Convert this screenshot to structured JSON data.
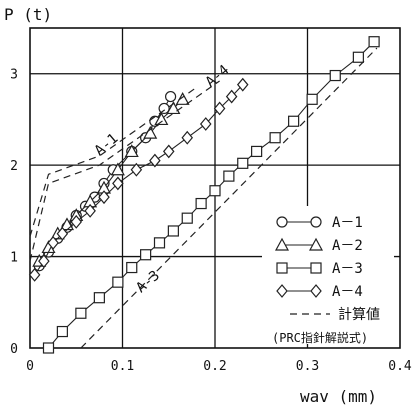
{
  "chart_data": {
    "type": "line",
    "ylabel": "P (t)",
    "xlabel": "wav (mm)",
    "xlim": [
      0,
      0.4
    ],
    "ylim": [
      0,
      3.5
    ],
    "x_ticks": [
      "0",
      "0.1",
      "0.2",
      "0.3",
      "0.4"
    ],
    "y_ticks": [
      "0",
      "1",
      "2",
      "3"
    ],
    "grid": true,
    "legend_position": "bottom-right",
    "series": [
      {
        "name": "A－1",
        "marker": "circle",
        "line": "solid",
        "points": [
          [
            0.01,
            0.9
          ],
          [
            0.02,
            1.05
          ],
          [
            0.03,
            1.2
          ],
          [
            0.04,
            1.32
          ],
          [
            0.05,
            1.45
          ],
          [
            0.06,
            1.55
          ],
          [
            0.07,
            1.65
          ],
          [
            0.08,
            1.8
          ],
          [
            0.09,
            1.95
          ],
          [
            0.11,
            2.15
          ],
          [
            0.125,
            2.3
          ],
          [
            0.135,
            2.48
          ],
          [
            0.145,
            2.62
          ],
          [
            0.152,
            2.75
          ]
        ]
      },
      {
        "name": "A－2",
        "marker": "triangle",
        "line": "solid",
        "points": [
          [
            0.01,
            0.95
          ],
          [
            0.02,
            1.1
          ],
          [
            0.03,
            1.25
          ],
          [
            0.04,
            1.35
          ],
          [
            0.05,
            1.45
          ],
          [
            0.065,
            1.6
          ],
          [
            0.08,
            1.75
          ],
          [
            0.095,
            1.95
          ],
          [
            0.11,
            2.15
          ],
          [
            0.13,
            2.35
          ],
          [
            0.142,
            2.5
          ],
          [
            0.155,
            2.62
          ],
          [
            0.165,
            2.72
          ]
        ]
      },
      {
        "name": "A－3",
        "marker": "square",
        "line": "solid",
        "points": [
          [
            0.02,
            0.0
          ],
          [
            0.035,
            0.18
          ],
          [
            0.055,
            0.38
          ],
          [
            0.075,
            0.55
          ],
          [
            0.095,
            0.72
          ],
          [
            0.11,
            0.88
          ],
          [
            0.125,
            1.02
          ],
          [
            0.14,
            1.15
          ],
          [
            0.155,
            1.28
          ],
          [
            0.17,
            1.42
          ],
          [
            0.185,
            1.58
          ],
          [
            0.2,
            1.72
          ],
          [
            0.215,
            1.88
          ],
          [
            0.23,
            2.02
          ],
          [
            0.245,
            2.15
          ],
          [
            0.265,
            2.3
          ],
          [
            0.285,
            2.48
          ],
          [
            0.305,
            2.72
          ],
          [
            0.33,
            2.98
          ],
          [
            0.355,
            3.18
          ],
          [
            0.372,
            3.35
          ]
        ]
      },
      {
        "name": "A－4",
        "marker": "diamond",
        "line": "solid",
        "points": [
          [
            0.005,
            0.8
          ],
          [
            0.015,
            0.95
          ],
          [
            0.025,
            1.15
          ],
          [
            0.035,
            1.25
          ],
          [
            0.05,
            1.38
          ],
          [
            0.065,
            1.5
          ],
          [
            0.08,
            1.65
          ],
          [
            0.095,
            1.8
          ],
          [
            0.115,
            1.95
          ],
          [
            0.135,
            2.05
          ],
          [
            0.15,
            2.15
          ],
          [
            0.17,
            2.3
          ],
          [
            0.19,
            2.45
          ],
          [
            0.205,
            2.62
          ],
          [
            0.218,
            2.75
          ],
          [
            0.23,
            2.88
          ]
        ]
      },
      {
        "name": "計算値",
        "marker": "none",
        "line": "dashed",
        "points": [
          [
            0.0,
            0.95
          ],
          [
            0.02,
            1.8
          ],
          [
            0.075,
            2.0
          ],
          [
            0.205,
            2.92
          ]
        ]
      },
      {
        "name": "計算値",
        "marker": "none",
        "line": "dashed",
        "points": [
          [
            0.055,
            0.0
          ],
          [
            0.375,
            3.28
          ]
        ]
      },
      {
        "name": "計算値",
        "marker": "none",
        "line": "dashed",
        "points": [
          [
            0.0,
            1.22
          ],
          [
            0.02,
            1.9
          ],
          [
            0.075,
            2.1
          ],
          [
            0.18,
            2.85
          ]
        ]
      }
    ],
    "annotations": [
      {
        "text": "A-1",
        "x": 0.075,
        "y": 2.1
      },
      {
        "text": "A-4",
        "x": 0.195,
        "y": 2.85
      },
      {
        "text": "A-3",
        "x": 0.12,
        "y": 0.6
      }
    ]
  },
  "legend": {
    "items": [
      {
        "label": "A－1",
        "marker": "circle"
      },
      {
        "label": "A－2",
        "marker": "triangle"
      },
      {
        "label": "A－3",
        "marker": "square"
      },
      {
        "label": "A－4",
        "marker": "diamond"
      }
    ],
    "calc_label": "計算値",
    "calc_note": "(PRC指針解説式)"
  }
}
